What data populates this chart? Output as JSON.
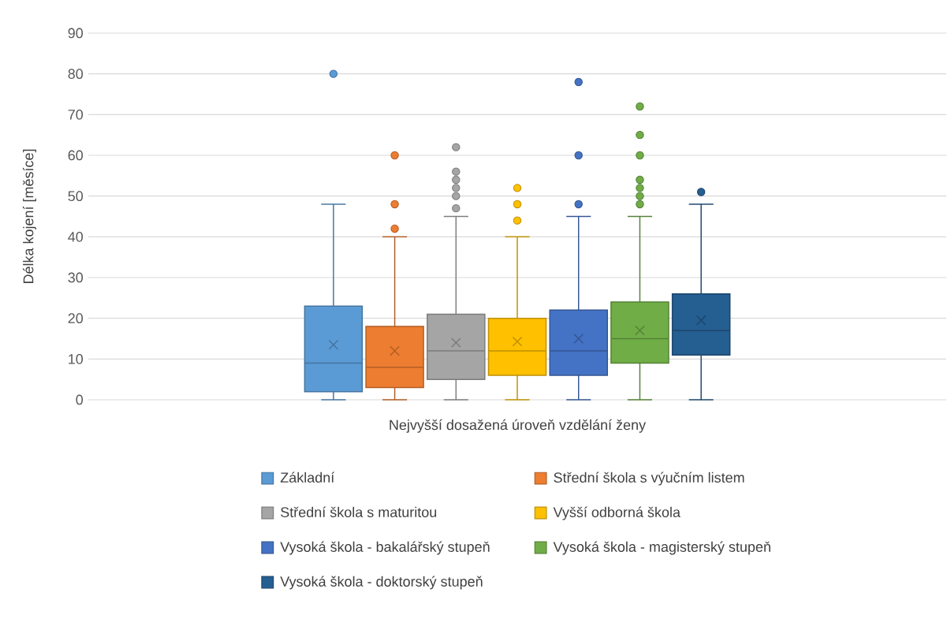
{
  "chart_data": {
    "type": "box",
    "xlabel": "Nejvyšší dosažená úroveň vzdělání ženy",
    "ylabel": "Délka kojení [měsíce]",
    "categories": [
      null
    ],
    "tick_labels": "y",
    "ylim": [
      0,
      90
    ],
    "yticks": [
      0,
      10,
      20,
      30,
      40,
      50,
      60,
      70,
      80,
      90
    ],
    "grid": "y",
    "legend": "bottom",
    "series": [
      {
        "name": "Základní",
        "color": "#5b9bd5",
        "boxes": [
          {
            "low": 0,
            "q1": 2,
            "median": 9,
            "q3": 23,
            "high": 48,
            "mean": 13.5,
            "outliers": [
              80
            ]
          }
        ]
      },
      {
        "name": "Střední škola s výučním listem",
        "color": "#ed7d31",
        "boxes": [
          {
            "low": 0,
            "q1": 3,
            "median": 8,
            "q3": 18,
            "high": 40,
            "mean": 12,
            "outliers": [
              42,
              48,
              60
            ]
          }
        ]
      },
      {
        "name": "Střední škola s maturitou",
        "color": "#a5a5a5",
        "boxes": [
          {
            "low": 0,
            "q1": 5,
            "median": 12,
            "q3": 21,
            "high": 45,
            "mean": 14,
            "outliers": [
              47,
              50,
              52,
              54,
              56,
              62
            ]
          }
        ]
      },
      {
        "name": "Vyšší odborná škola",
        "color": "#ffc000",
        "boxes": [
          {
            "low": 0,
            "q1": 6,
            "median": 12,
            "q3": 20,
            "high": 40,
            "mean": 14.3,
            "outliers": [
              44,
              48,
              52
            ]
          }
        ]
      },
      {
        "name": "Vysoká škola - bakalářský stupeň",
        "color": "#4472c4",
        "boxes": [
          {
            "low": 0,
            "q1": 6,
            "median": 12,
            "q3": 22,
            "high": 45,
            "mean": 15,
            "outliers": [
              48,
              60,
              78
            ]
          }
        ]
      },
      {
        "name": "Vysoká škola - magisterský stupeň",
        "color": "#70ad47",
        "boxes": [
          {
            "low": 0,
            "q1": 9,
            "median": 15,
            "q3": 24,
            "high": 45,
            "mean": 17,
            "outliers": [
              48,
              50,
              52,
              54,
              60,
              65,
              72
            ]
          }
        ]
      },
      {
        "name": "Vysoká škola - doktorský stupeň",
        "color": "#255e91",
        "boxes": [
          {
            "low": 0,
            "q1": 11,
            "median": 17,
            "q3": 26,
            "high": 48,
            "mean": 19.5,
            "outliers": [
              51
            ]
          }
        ]
      }
    ]
  }
}
